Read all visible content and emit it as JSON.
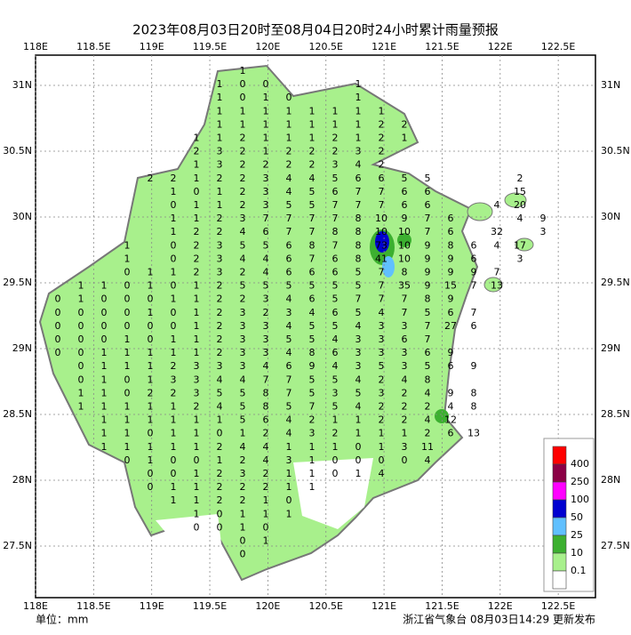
{
  "title": "2023年08月03日20时至08月04日20时24小时累计雨量预报",
  "lon_ticks": [
    {
      "value": 118,
      "label": "118E"
    },
    {
      "value": 118.5,
      "label": "118.5E"
    },
    {
      "value": 119,
      "label": "119E"
    },
    {
      "value": 119.5,
      "label": "119.5E"
    },
    {
      "value": 120,
      "label": "120E"
    },
    {
      "value": 120.5,
      "label": "120.5E"
    },
    {
      "value": 121,
      "label": "121E"
    },
    {
      "value": 121.5,
      "label": "121.5E"
    },
    {
      "value": 122,
      "label": "122E"
    },
    {
      "value": 122.5,
      "label": "122.5E"
    }
  ],
  "lat_ticks": [
    {
      "value": 31,
      "label": "31N"
    },
    {
      "value": 30.5,
      "label": "30.5N"
    },
    {
      "value": 30,
      "label": "30N"
    },
    {
      "value": 29.5,
      "label": "29.5N"
    },
    {
      "value": 29,
      "label": "29N"
    },
    {
      "value": 28.5,
      "label": "28.5N"
    },
    {
      "value": 28,
      "label": "28N"
    },
    {
      "value": 27.5,
      "label": "27.5N"
    }
  ],
  "legend": {
    "labels": [
      "400",
      "250",
      "100",
      "50",
      "25",
      "10",
      "0.1"
    ],
    "colors": [
      "#ff0000",
      "#8b0045",
      "#ff00ff",
      "#0000d0",
      "#60c0ff",
      "#3cb030",
      "#a8f08c",
      "#ffffff"
    ]
  },
  "unit": "单位：mm",
  "footer": "浙江省气象台 08月03日14:29 更新发布",
  "rain_grid": {
    "rows": [
      [
        null,
        null,
        null,
        null,
        null,
        null,
        null,
        null,
        1
      ],
      [
        null,
        null,
        null,
        null,
        null,
        null,
        null,
        1,
        0,
        0,
        null,
        null,
        null,
        1
      ],
      [
        null,
        null,
        null,
        null,
        null,
        null,
        null,
        1,
        0,
        1,
        0,
        null,
        null,
        1
      ],
      [
        null,
        null,
        null,
        null,
        null,
        null,
        null,
        1,
        1,
        1,
        1,
        1,
        1,
        1,
        1
      ],
      [
        null,
        null,
        null,
        null,
        null,
        null,
        null,
        1,
        1,
        1,
        1,
        1,
        1,
        1,
        2,
        2
      ],
      [
        null,
        null,
        null,
        null,
        null,
        null,
        1,
        1,
        2,
        1,
        1,
        1,
        2,
        1,
        2,
        1
      ],
      [
        null,
        null,
        null,
        null,
        null,
        null,
        2,
        3,
        2,
        1,
        2,
        2,
        2,
        3,
        2
      ],
      [
        null,
        null,
        null,
        null,
        null,
        null,
        1,
        3,
        2,
        2,
        2,
        2,
        3,
        4,
        2
      ],
      [
        null,
        null,
        null,
        null,
        2,
        2,
        1,
        2,
        2,
        3,
        4,
        4,
        5,
        6,
        6,
        5,
        5,
        null,
        null,
        null,
        2
      ],
      [
        null,
        null,
        null,
        null,
        null,
        1,
        0,
        1,
        2,
        3,
        4,
        5,
        6,
        7,
        7,
        6,
        6,
        null,
        null,
        null,
        15
      ],
      [
        null,
        null,
        null,
        null,
        null,
        0,
        1,
        1,
        2,
        3,
        5,
        5,
        7,
        7,
        7,
        6,
        6,
        null,
        null,
        4,
        20
      ],
      [
        null,
        null,
        null,
        null,
        null,
        1,
        1,
        2,
        3,
        7,
        7,
        7,
        7,
        8,
        10,
        9,
        7,
        6,
        null,
        null,
        4,
        9
      ],
      [
        null,
        null,
        null,
        null,
        null,
        1,
        2,
        2,
        4,
        6,
        7,
        7,
        8,
        8,
        10,
        10,
        7,
        6,
        null,
        32,
        null,
        3
      ],
      [
        null,
        null,
        null,
        1,
        null,
        0,
        2,
        3,
        5,
        5,
        6,
        8,
        7,
        8,
        73,
        10,
        9,
        8,
        6,
        4,
        17
      ],
      [
        null,
        null,
        null,
        1,
        null,
        0,
        2,
        3,
        4,
        4,
        6,
        7,
        6,
        8,
        41,
        10,
        9,
        9,
        6,
        null,
        3
      ],
      [
        null,
        null,
        null,
        0,
        1,
        1,
        2,
        3,
        2,
        4,
        6,
        6,
        6,
        5,
        7,
        8,
        9,
        9,
        9,
        7
      ],
      [
        null,
        1,
        1,
        0,
        1,
        0,
        1,
        2,
        5,
        5,
        5,
        5,
        5,
        5,
        7,
        35,
        9,
        15,
        7,
        13
      ],
      [
        0,
        1,
        0,
        0,
        0,
        1,
        1,
        2,
        2,
        3,
        4,
        6,
        5,
        7,
        7,
        7,
        8,
        9
      ],
      [
        0,
        0,
        0,
        0,
        1,
        0,
        1,
        2,
        3,
        2,
        3,
        4,
        6,
        5,
        4,
        7,
        5,
        6,
        7
      ],
      [
        0,
        0,
        0,
        0,
        0,
        0,
        1,
        2,
        3,
        3,
        4,
        5,
        5,
        4,
        3,
        3,
        7,
        27,
        6
      ],
      [
        0,
        0,
        0,
        1,
        0,
        1,
        1,
        2,
        3,
        3,
        5,
        5,
        4,
        3,
        3,
        6,
        7
      ],
      [
        0,
        0,
        1,
        1,
        1,
        1,
        1,
        2,
        3,
        3,
        4,
        8,
        6,
        3,
        3,
        3,
        6,
        9
      ],
      [
        null,
        0,
        1,
        1,
        1,
        2,
        3,
        3,
        3,
        4,
        6,
        9,
        4,
        3,
        5,
        3,
        5,
        6,
        9
      ],
      [
        null,
        0,
        1,
        0,
        1,
        3,
        3,
        4,
        4,
        7,
        7,
        5,
        5,
        4,
        2,
        4,
        8
      ],
      [
        null,
        1,
        1,
        0,
        2,
        2,
        3,
        5,
        5,
        8,
        7,
        5,
        3,
        5,
        3,
        2,
        4,
        9,
        8
      ],
      [
        null,
        1,
        1,
        1,
        1,
        1,
        2,
        4,
        5,
        8,
        5,
        7,
        5,
        4,
        2,
        2,
        2,
        4,
        8
      ],
      [
        null,
        null,
        1,
        1,
        1,
        1,
        1,
        1,
        5,
        6,
        4,
        2,
        1,
        1,
        2,
        2,
        4,
        12
      ],
      [
        null,
        null,
        1,
        1,
        0,
        1,
        1,
        0,
        1,
        2,
        4,
        3,
        2,
        1,
        1,
        1,
        2,
        6,
        13
      ],
      [
        null,
        null,
        1,
        1,
        1,
        1,
        1,
        2,
        4,
        4,
        1,
        1,
        1,
        0,
        1,
        3,
        11
      ],
      [
        null,
        null,
        null,
        0,
        1,
        0,
        0,
        1,
        2,
        4,
        3,
        1,
        0,
        0,
        0,
        0,
        4
      ],
      [
        null,
        null,
        null,
        null,
        0,
        0,
        1,
        2,
        3,
        2,
        1,
        1,
        0,
        1,
        4
      ],
      [
        null,
        null,
        null,
        null,
        0,
        1,
        1,
        2,
        2,
        2,
        1,
        1
      ],
      [
        null,
        null,
        null,
        null,
        null,
        1,
        1,
        2,
        2,
        1,
        0
      ],
      [
        null,
        null,
        null,
        null,
        null,
        null,
        1,
        0,
        1,
        1,
        1
      ],
      [
        null,
        null,
        null,
        null,
        null,
        null,
        0,
        0,
        1,
        0
      ],
      [
        null,
        null,
        null,
        null,
        null,
        null,
        null,
        null,
        0,
        1
      ],
      [
        null,
        null,
        null,
        null,
        null,
        null,
        null,
        null,
        0
      ]
    ]
  }
}
